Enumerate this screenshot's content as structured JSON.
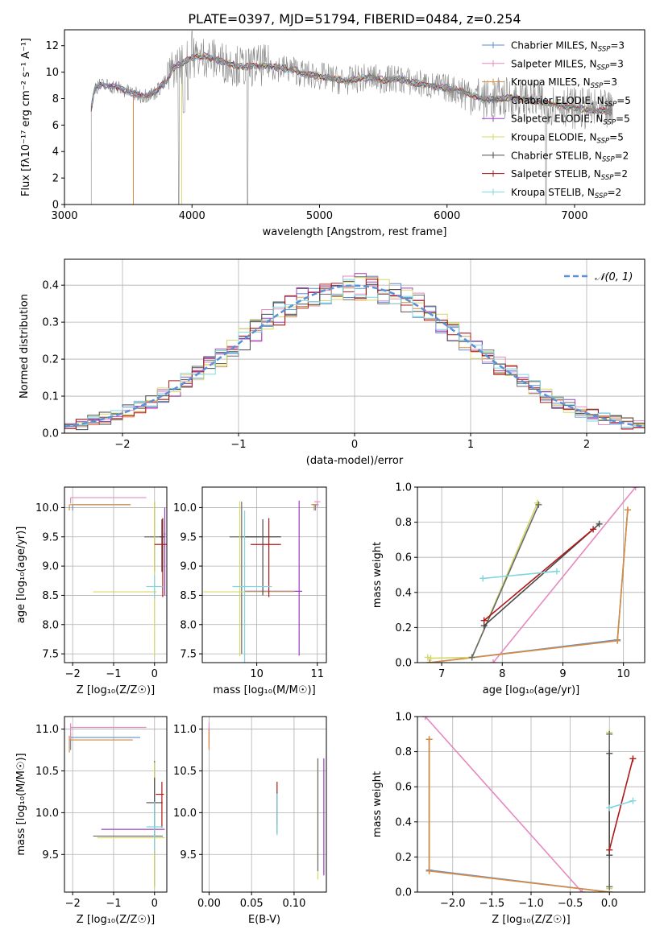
{
  "title": "PLATE=0397, MJD=51794, FIBERID=0484, z=0.254",
  "colors": {
    "chab_miles": "#5b8fd6",
    "salp_miles": "#e68ac0",
    "krou_miles": "#d98a3a",
    "chab_elodie": "#6a6a6a",
    "salp_elodie": "#9a3fbf",
    "krou_elodie": "#d4d86a",
    "chab_stelib": "#4a4a4a",
    "salp_stelib": "#b01818",
    "krou_stelib": "#7fd6e0",
    "data": "#888888",
    "gauss": "#5b8fd6"
  },
  "chart_data": [
    {
      "id": "spectrum",
      "type": "line",
      "xlabel": "wavelength [Angstrom, rest frame]",
      "ylabel": "Flux [fλ10⁻¹⁷ erg cm⁻² s⁻¹ A⁻¹]",
      "xlim": [
        3000,
        7550
      ],
      "ylim": [
        0,
        13.2
      ],
      "xticks": [
        3000,
        4000,
        5000,
        6000,
        7000
      ],
      "yticks": [
        0,
        2,
        4,
        6,
        8,
        10,
        12
      ],
      "legend_position": "top-right",
      "legend": [
        {
          "label": "Chabrier MILES, N",
          "sub": "SSP",
          "suffix": "=3",
          "color_key": "chab_miles"
        },
        {
          "label": "Salpeter MILES, N",
          "sub": "SSP",
          "suffix": "=3",
          "color_key": "salp_miles"
        },
        {
          "label": "Kroupa MILES, N",
          "sub": "SSP",
          "suffix": "=3",
          "color_key": "krou_miles"
        },
        {
          "label": "Chabrier ELODIE, N",
          "sub": "SSP",
          "suffix": "=5",
          "color_key": "chab_elodie"
        },
        {
          "label": "Salpeter ELODIE, N",
          "sub": "SSP",
          "suffix": "=5",
          "color_key": "salp_elodie"
        },
        {
          "label": "Kroupa ELODIE, N",
          "sub": "SSP",
          "suffix": "=5",
          "color_key": "krou_elodie"
        },
        {
          "label": "Chabrier STELIB, N",
          "sub": "SSP",
          "suffix": "=2",
          "color_key": "chab_stelib"
        },
        {
          "label": "Salpeter STELIB, N",
          "sub": "SSP",
          "suffix": "=2",
          "color_key": "salp_stelib"
        },
        {
          "label": "Kroupa STELIB, N",
          "sub": "SSP",
          "suffix": "=2",
          "color_key": "krou_stelib"
        }
      ],
      "continuum": [
        [
          3210,
          7.3
        ],
        [
          3240,
          8.9
        ],
        [
          3300,
          9.0
        ],
        [
          3400,
          8.9
        ],
        [
          3500,
          8.5
        ],
        [
          3600,
          8.2
        ],
        [
          3700,
          8.4
        ],
        [
          3800,
          9.3
        ],
        [
          3850,
          10.3
        ],
        [
          3900,
          10.6
        ],
        [
          3950,
          10.8
        ],
        [
          4000,
          11.1
        ],
        [
          4100,
          11.2
        ],
        [
          4200,
          10.9
        ],
        [
          4300,
          10.6
        ],
        [
          4400,
          10.4
        ],
        [
          4500,
          10.5
        ],
        [
          4600,
          10.5
        ],
        [
          4700,
          10.3
        ],
        [
          4800,
          10.2
        ],
        [
          4860,
          9.9
        ],
        [
          4900,
          9.8
        ],
        [
          5000,
          9.7
        ],
        [
          5100,
          9.5
        ],
        [
          5200,
          9.3
        ],
        [
          5300,
          9.5
        ],
        [
          5400,
          9.6
        ],
        [
          5500,
          9.4
        ],
        [
          5600,
          9.5
        ],
        [
          5700,
          9.3
        ],
        [
          5800,
          9.1
        ],
        [
          5900,
          8.9
        ],
        [
          6000,
          8.8
        ],
        [
          6100,
          8.6
        ],
        [
          6200,
          8.3
        ],
        [
          6300,
          7.9
        ],
        [
          6400,
          8.0
        ],
        [
          6500,
          8.1
        ],
        [
          6563,
          7.9
        ],
        [
          6600,
          8.0
        ],
        [
          6700,
          7.8
        ],
        [
          6800,
          7.6
        ],
        [
          6900,
          7.5
        ],
        [
          7000,
          7.3
        ],
        [
          7100,
          7.2
        ],
        [
          7200,
          7.1
        ],
        [
          7300,
          7.0
        ]
      ],
      "cutoffs": [
        {
          "color_key": "krou_miles",
          "start": 3540
        },
        {
          "color_key": "krou_elodie",
          "start": 3920
        },
        {
          "color_key": "salp_miles",
          "start": 3540
        }
      ]
    },
    {
      "id": "residuals",
      "type": "histogram",
      "xlabel": "(data-model)/error",
      "ylabel": "Normed distribution",
      "xlim": [
        -2.5,
        2.5
      ],
      "ylim": [
        0,
        0.47
      ],
      "xticks": [
        -2,
        -1,
        0,
        1,
        2
      ],
      "yticks": [
        0.0,
        0.1,
        0.2,
        0.3,
        0.4
      ],
      "gaussian_label": "𝒩(0, 1)",
      "legend_position": "top-right",
      "grid": true,
      "bins": {
        "start": -2.5,
        "width": 0.1,
        "count": 50
      }
    },
    {
      "id": "age_vs_Z",
      "type": "errorbar",
      "xlabel": "Z [log₁₀(Z/Z☉)]",
      "ylabel": "age  [log₁₀(age/yr)]",
      "xlim": [
        -2.2,
        0.3
      ],
      "ylim": [
        7.35,
        10.35
      ],
      "xticks": [
        -2,
        -1,
        0
      ],
      "yticks": [
        7.5,
        8.0,
        8.5,
        9.0,
        9.5,
        10.0
      ],
      "grid": true,
      "points": [
        {
          "c": "chab_miles",
          "x": -2.0,
          "y": 10.05,
          "xe": [
            0,
            1.4
          ],
          "ye": [
            0.1,
            0.0
          ]
        },
        {
          "c": "salp_miles",
          "x": -2.05,
          "y": 10.17,
          "xe": [
            0,
            1.85
          ],
          "ye": [
            0.1,
            0.0
          ]
        },
        {
          "c": "krou_miles",
          "x": -2.08,
          "y": 10.05,
          "xe": [
            0,
            1.5
          ],
          "ye": [
            0.1,
            0.0
          ]
        },
        {
          "c": "chab_elodie",
          "x": 0.0,
          "y": 9.5,
          "xe": [
            0.25,
            0.25
          ],
          "ye": [
            0.6,
            0.6
          ]
        },
        {
          "c": "salp_elodie",
          "x": 0.25,
          "y": 9.55,
          "xe": [
            0.02,
            0.02
          ],
          "ye": [
            1.05,
            0.45
          ]
        },
        {
          "c": "krou_elodie",
          "x": 0.0,
          "y": 8.56,
          "xe": [
            1.5,
            0.05
          ],
          "ye": [
            1.1,
            1.55
          ]
        },
        {
          "c": "chab_stelib",
          "x": 0.18,
          "y": 9.5,
          "xe": [
            0.05,
            0.05
          ],
          "ye": [
            0.6,
            0.3
          ]
        },
        {
          "c": "salp_stelib",
          "x": 0.2,
          "y": 9.37,
          "xe": [
            0.2,
            0.1
          ],
          "ye": [
            0.9,
            0.45
          ]
        },
        {
          "c": "krou_stelib",
          "x": 0.0,
          "y": 8.65,
          "xe": [
            0.2,
            0.2
          ],
          "ye": [
            0.2,
            0.2
          ]
        }
      ]
    },
    {
      "id": "age_vs_mass",
      "type": "errorbar",
      "xlabel": "mass [log₁₀(M/M☉)]",
      "ylabel": "",
      "xlim": [
        9.1,
        11.15
      ],
      "ylim": [
        7.35,
        10.35
      ],
      "xticks": [
        10,
        11
      ],
      "yticks": [
        7.5,
        8.0,
        8.5,
        9.0,
        9.5,
        10.0
      ],
      "grid": true,
      "points": [
        {
          "c": "chab_miles",
          "x": 10.97,
          "y": 10.05,
          "xe": [
            0.05,
            0.05
          ],
          "ye": [
            0.1,
            0.0
          ]
        },
        {
          "c": "salp_miles",
          "x": 11.0,
          "y": 10.1,
          "xe": [
            0.05,
            0.05
          ],
          "ye": [
            0.1,
            0.0
          ]
        },
        {
          "c": "krou_miles",
          "x": 10.95,
          "y": 10.05,
          "xe": [
            0.05,
            0.05
          ],
          "ye": [
            0.1,
            0.0
          ]
        },
        {
          "c": "chab_elodie",
          "x": 9.75,
          "y": 9.5,
          "xe": [
            0.2,
            0.3
          ],
          "ye": [
            2.0,
            0.6
          ]
        },
        {
          "c": "salp_elodie",
          "x": 10.7,
          "y": 8.57,
          "xe": [
            0.9,
            0.05
          ],
          "ye": [
            1.1,
            1.55
          ]
        },
        {
          "c": "krou_elodie",
          "x": 9.72,
          "y": 8.56,
          "xe": [
            0.6,
            0.9
          ],
          "ye": [
            1.1,
            1.55
          ]
        },
        {
          "c": "chab_stelib",
          "x": 10.1,
          "y": 9.5,
          "xe": [
            0.3,
            0.3
          ],
          "ye": [
            1.0,
            0.3
          ]
        },
        {
          "c": "salp_stelib",
          "x": 10.2,
          "y": 9.37,
          "xe": [
            0.3,
            0.2
          ],
          "ye": [
            0.9,
            0.45
          ]
        },
        {
          "c": "krou_stelib",
          "x": 9.8,
          "y": 8.65,
          "xe": [
            0.2,
            0.45
          ],
          "ye": [
            1.3,
            1.3
          ]
        }
      ]
    },
    {
      "id": "weight_vs_age",
      "type": "line",
      "xlabel": "age  [log₁₀(age/yr)]",
      "ylabel": "mass weight",
      "xlim": [
        6.6,
        10.35
      ],
      "ylim": [
        0,
        1.0
      ],
      "xticks": [
        7,
        8,
        9,
        10
      ],
      "yticks": [
        0.0,
        0.2,
        0.4,
        0.6,
        0.8,
        1.0
      ],
      "grid": true,
      "series": [
        {
          "c": "chab_miles",
          "x": [
            6.8,
            9.9,
            10.07
          ],
          "y": [
            0.0,
            0.13,
            0.87
          ]
        },
        {
          "c": "salp_miles",
          "x": [
            7.85,
            10.2
          ],
          "y": [
            0.0,
            1.0
          ]
        },
        {
          "c": "krou_miles",
          "x": [
            6.8,
            9.9,
            10.07
          ],
          "y": [
            0.0,
            0.125,
            0.87
          ]
        },
        {
          "c": "krou_elodie",
          "x": [
            6.77,
            6.82,
            7.5,
            8.58
          ],
          "y": [
            0.03,
            0.025,
            0.03,
            0.91
          ]
        },
        {
          "c": "chab_elodie",
          "x": [
            7.5,
            8.6
          ],
          "y": [
            0.03,
            0.9
          ]
        },
        {
          "c": "chab_stelib",
          "x": [
            7.7,
            9.6
          ],
          "y": [
            0.21,
            0.79
          ]
        },
        {
          "c": "salp_stelib",
          "x": [
            7.7,
            9.5
          ],
          "y": [
            0.24,
            0.76
          ]
        },
        {
          "c": "krou_stelib",
          "x": [
            7.68,
            8.9
          ],
          "y": [
            0.48,
            0.52
          ]
        }
      ]
    },
    {
      "id": "mass_vs_Z",
      "type": "errorbar",
      "xlabel": "Z [log₁₀(Z/Z☉)]",
      "ylabel": "mass [log₁₀(M/M☉)]",
      "xlim": [
        -2.2,
        0.3
      ],
      "ylim": [
        9.05,
        11.15
      ],
      "xticks": [
        -2,
        -1,
        0
      ],
      "yticks": [
        9.5,
        10.0,
        10.5,
        11.0
      ],
      "grid": true,
      "points": [
        {
          "c": "chab_miles",
          "x": -2.05,
          "y": 10.9,
          "xe": [
            0,
            1.7
          ],
          "ye": [
            0.15,
            0.05
          ]
        },
        {
          "c": "salp_miles",
          "x": -2.05,
          "y": 11.02,
          "xe": [
            0,
            1.85
          ],
          "ye": [
            0.15,
            0.05
          ]
        },
        {
          "c": "krou_miles",
          "x": -2.08,
          "y": 10.87,
          "xe": [
            0,
            1.55
          ],
          "ye": [
            0.15,
            0.05
          ]
        },
        {
          "c": "chab_elodie",
          "x": 0.0,
          "y": 9.72,
          "xe": [
            1.5,
            0.2
          ],
          "ye": [
            0.6,
            0.9
          ]
        },
        {
          "c": "salp_elodie",
          "x": 0.0,
          "y": 9.8,
          "xe": [
            1.3,
            0.25
          ],
          "ye": [
            0.3,
            0.5
          ]
        },
        {
          "c": "krou_elodie",
          "x": 0.0,
          "y": 9.7,
          "xe": [
            1.4,
            0.25
          ],
          "ye": [
            0.6,
            0.9
          ]
        },
        {
          "c": "chab_stelib",
          "x": 0.0,
          "y": 10.12,
          "xe": [
            0.2,
            0.2
          ],
          "ye": [
            0.4,
            0.3
          ]
        },
        {
          "c": "salp_stelib",
          "x": 0.18,
          "y": 10.22,
          "xe": [
            0.15,
            0.05
          ],
          "ye": [
            0.4,
            0.15
          ]
        },
        {
          "c": "krou_stelib",
          "x": 0.0,
          "y": 9.83,
          "xe": [
            0.2,
            0.2
          ],
          "ye": [
            0.3,
            0.3
          ]
        }
      ]
    },
    {
      "id": "mass_vs_ebv",
      "type": "errorbar",
      "xlabel": "E(B-V)",
      "ylabel": "",
      "xlim": [
        -0.008,
        0.138
      ],
      "ylim": [
        9.05,
        11.15
      ],
      "xticks": [
        0.0,
        0.05,
        0.1
      ],
      "xtick_labels": [
        "0.00",
        "0.05",
        "0.10"
      ],
      "yticks": [
        9.5,
        10.0,
        10.5,
        11.0
      ],
      "grid": true,
      "points": [
        {
          "c": "chab_miles",
          "x": 0.0,
          "y": 10.92,
          "xe": [
            0,
            0
          ],
          "ye": [
            0.15,
            0.1
          ]
        },
        {
          "c": "salp_miles",
          "x": 0.0,
          "y": 10.98,
          "xe": [
            0,
            0
          ],
          "ye": [
            0.15,
            0.1
          ]
        },
        {
          "c": "krou_miles",
          "x": 0.0,
          "y": 10.9,
          "xe": [
            0,
            0
          ],
          "ye": [
            0.15,
            0.1
          ]
        },
        {
          "c": "salp_elodie",
          "x": 0.135,
          "y": 9.9,
          "xe": [
            0,
            0
          ],
          "ye": [
            0.65,
            0.75
          ]
        },
        {
          "c": "krou_elodie",
          "x": 0.128,
          "y": 9.85,
          "xe": [
            0,
            0
          ],
          "ye": [
            0.65,
            0.8
          ]
        },
        {
          "c": "chab_elodie",
          "x": 0.128,
          "y": 9.8,
          "xe": [
            0,
            0
          ],
          "ye": [
            0.5,
            0.85
          ]
        },
        {
          "c": "salp_stelib",
          "x": 0.08,
          "y": 10.15,
          "xe": [
            0,
            0
          ],
          "ye": [
            0.3,
            0.22
          ]
        },
        {
          "c": "chab_stelib",
          "x": 0.08,
          "y": 10.05,
          "xe": [
            0,
            0
          ],
          "ye": [
            0.3,
            0.2
          ]
        },
        {
          "c": "krou_stelib",
          "x": 0.08,
          "y": 9.98,
          "xe": [
            0,
            0
          ],
          "ye": [
            0.25,
            0.25
          ]
        }
      ]
    },
    {
      "id": "weight_vs_Z",
      "type": "line",
      "xlabel": "Z [log₁₀(Z/Z☉)]",
      "ylabel": "mass weight",
      "xlim": [
        -2.45,
        0.45
      ],
      "ylim": [
        0,
        1.0
      ],
      "xticks": [
        -2.0,
        -1.5,
        -1.0,
        -0.5,
        0.0
      ],
      "xtick_labels": [
        "−2.0",
        "−1.5",
        "−1.0",
        "−0.5",
        "0.0"
      ],
      "yticks": [
        0.0,
        0.2,
        0.4,
        0.6,
        0.8,
        1.0
      ],
      "grid": true,
      "series": [
        {
          "c": "chab_miles",
          "x": [
            -2.3,
            -2.3,
            0.0
          ],
          "y": [
            0.87,
            0.125,
            0.0
          ]
        },
        {
          "c": "salp_miles",
          "x": [
            -2.35,
            -0.35
          ],
          "y": [
            1.0,
            0.0
          ]
        },
        {
          "c": "krou_miles",
          "x": [
            -2.3,
            -2.3,
            0.0
          ],
          "y": [
            0.87,
            0.12,
            0.0
          ]
        },
        {
          "c": "krou_elodie",
          "x": [
            0.0,
            0.0,
            0.0
          ],
          "y": [
            0.02,
            0.03,
            0.91
          ]
        },
        {
          "c": "chab_elodie",
          "x": [
            0.0,
            0.0
          ],
          "y": [
            0.03,
            0.9
          ]
        },
        {
          "c": "chab_stelib",
          "x": [
            0.0,
            0.0
          ],
          "y": [
            0.21,
            0.79
          ]
        },
        {
          "c": "salp_stelib",
          "x": [
            0.0,
            0.3
          ],
          "y": [
            0.24,
            0.76
          ]
        },
        {
          "c": "krou_stelib",
          "x": [
            0.0,
            0.3
          ],
          "y": [
            0.48,
            0.52
          ]
        }
      ]
    }
  ]
}
